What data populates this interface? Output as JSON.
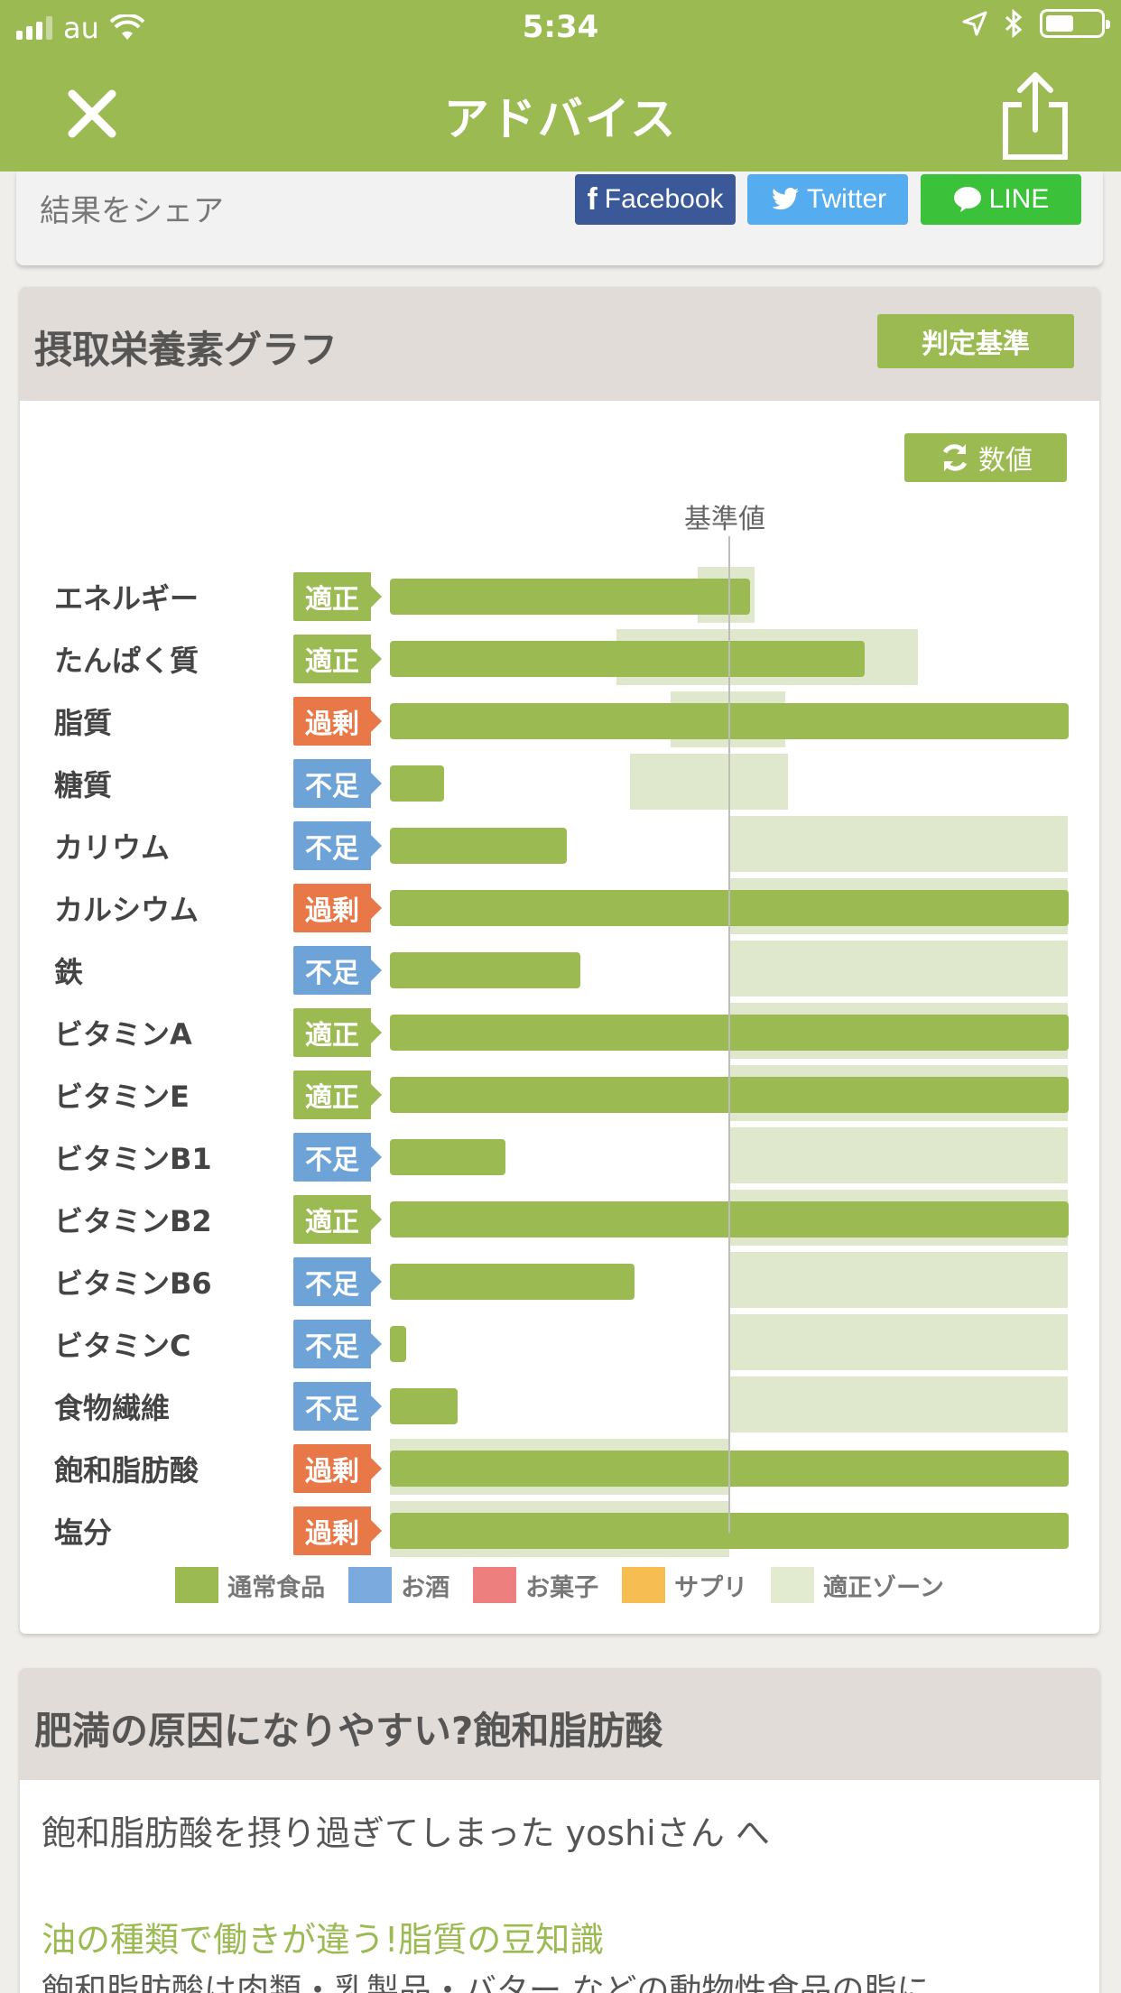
{
  "status": {
    "carrier": "au",
    "time": "5:34"
  },
  "nav": {
    "title": "アドバイス"
  },
  "share": {
    "label": "結果をシェア",
    "facebook": "Facebook",
    "twitter": "Twitter",
    "line": "LINE"
  },
  "graph": {
    "title": "摂取栄養素グラフ",
    "criteria_button": "判定基準",
    "value_button": "数値",
    "reference_label": "基準値"
  },
  "nutrients": [
    {
      "name": "エネルギー",
      "status": "適正",
      "level": 0.53
    },
    {
      "name": "たんぱく質",
      "status": "適正",
      "level": 0.7
    },
    {
      "name": "脂質",
      "status": "過剰",
      "level": 1.0
    },
    {
      "name": "糖質",
      "status": "不足",
      "level": 0.08
    },
    {
      "name": "カリウム",
      "status": "不足",
      "level": 0.26
    },
    {
      "name": "カルシウム",
      "status": "過剰",
      "level": 1.0
    },
    {
      "name": "鉄",
      "status": "不足",
      "level": 0.28
    },
    {
      "name": "ビタミンA",
      "status": "適正",
      "level": 1.0
    },
    {
      "name": "ビタミンE",
      "status": "適正",
      "level": 1.0
    },
    {
      "name": "ビタミンB1",
      "status": "不足",
      "level": 0.17
    },
    {
      "name": "ビタミンB2",
      "status": "適正",
      "level": 1.0
    },
    {
      "name": "ビタミンB6",
      "status": "不足",
      "level": 0.36
    },
    {
      "name": "ビタミンC",
      "status": "不足",
      "level": 0.02
    },
    {
      "name": "食物繊維",
      "status": "不足",
      "level": 0.1
    },
    {
      "name": "飽和脂肪酸",
      "status": "過剰",
      "level": 1.0
    },
    {
      "name": "塩分",
      "status": "過剰",
      "level": 1.0
    }
  ],
  "legend": [
    "通常食品",
    "お酒",
    "お菓子",
    "サプリ",
    "適正ゾーン"
  ],
  "colors": {
    "brand": "#9bbb52",
    "ok": "#9bbb52",
    "low": "#6ea3d8",
    "over": "#e87848",
    "zone": "#dfe8cc",
    "food": "#9bbb52",
    "alcohol": "#7aaade",
    "snacks": "#ee7f7f",
    "supplement": "#f5bd52",
    "zone_legend": "#e2eacf"
  },
  "advice": {
    "title": "肥満の原因になりやすい?飽和脂肪酸",
    "greeting": "飽和脂肪酸を摂り過ぎてしまった yoshiさん へ",
    "subheading": "油の種類で働きが違う!脂質の豆知識",
    "body": "飽和脂肪酸は肉類・乳製品・バター などの動物性食品の脂に"
  }
}
